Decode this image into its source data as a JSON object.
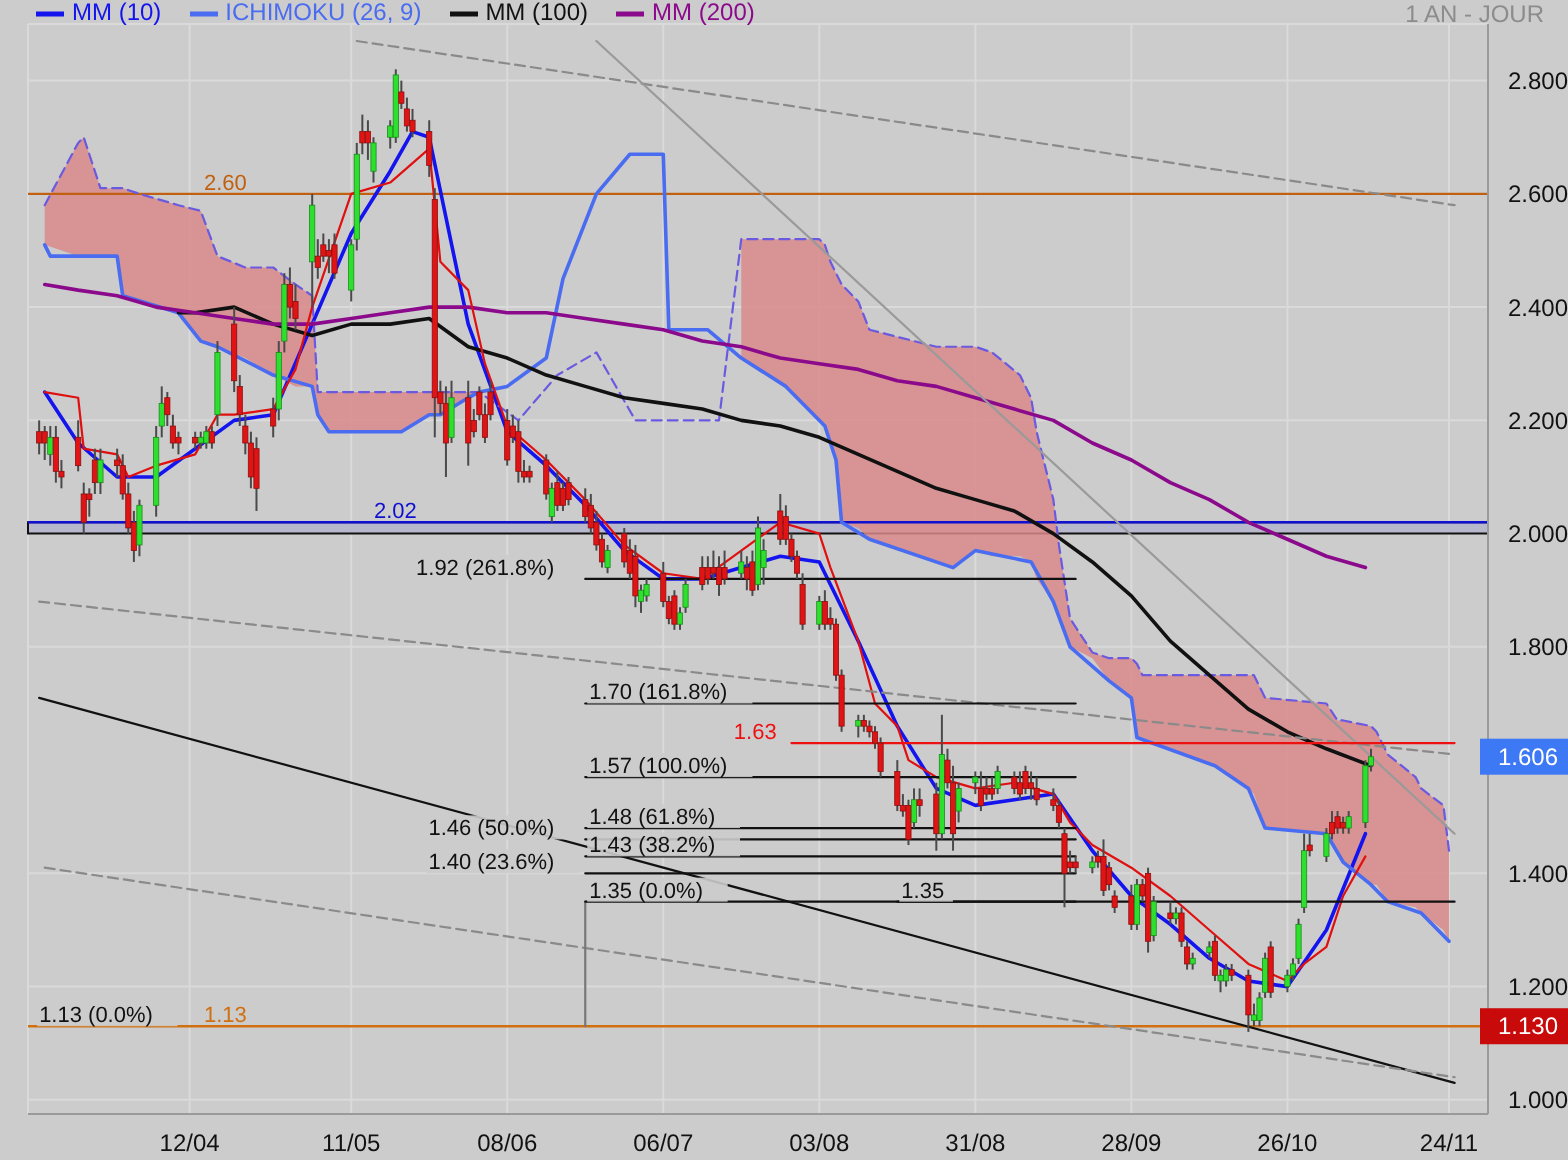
{
  "chart_data": {
    "type": "candlestick",
    "subtitle": "1 AN - JOUR",
    "legend": "top left",
    "grid": true,
    "xlim": [
      "--03-14",
      "--12-01"
    ],
    "xticks": [
      {
        "value": "--04-12",
        "label": "12/04"
      },
      {
        "value": "--05-11",
        "label": "11/05"
      },
      {
        "value": "--06-08",
        "label": "08/06"
      },
      {
        "value": "--07-06",
        "label": "06/07"
      },
      {
        "value": "--08-03",
        "label": "03/08"
      },
      {
        "value": "--08-31",
        "label": "31/08"
      },
      {
        "value": "--09-28",
        "label": "28/09"
      },
      {
        "value": "--10-26",
        "label": "26/10"
      },
      {
        "value": "--11-24",
        "label": "24/11"
      }
    ],
    "ylim": [
      0.975,
      2.9
    ],
    "yticks": [
      {
        "value": 1,
        "label": "1.000"
      },
      {
        "value": 1.2,
        "label": "1.200"
      },
      {
        "value": 1.4,
        "label": "1.400"
      },
      {
        "value": 1.8,
        "label": "1.800"
      },
      {
        "value": 2,
        "label": "2.000"
      },
      {
        "value": 2.2,
        "label": "2.200"
      },
      {
        "value": 2.4,
        "label": "2.400"
      },
      {
        "value": 2.6,
        "label": "2.600"
      },
      {
        "value": 2.8,
        "label": "2.800"
      }
    ],
    "x": [
      "--03-16",
      "--03-17",
      "--03-18",
      "--03-19",
      "--03-20",
      "--03-23",
      "--03-24",
      "--03-25",
      "--03-26",
      "--03-27",
      "--03-30",
      "--03-31",
      "--04-01",
      "--04-02",
      "--04-03",
      "--04-06",
      "--04-07",
      "--04-08",
      "--04-09",
      "--04-10",
      "--04-13",
      "--04-14",
      "--04-15",
      "--04-16",
      "--04-17",
      "--04-20",
      "--04-21",
      "--04-22",
      "--04-23",
      "--04-24",
      "--04-27",
      "--04-28",
      "--04-29",
      "--04-30",
      "--05-01",
      "--05-04",
      "--05-05",
      "--05-06",
      "--05-07",
      "--05-08",
      "--05-11",
      "--05-12",
      "--05-13",
      "--05-14",
      "--05-15",
      "--05-18",
      "--05-19",
      "--05-20",
      "--05-21",
      "--05-22",
      "--05-25",
      "--05-26",
      "--05-27",
      "--05-28",
      "--05-29",
      "--06-01",
      "--06-02",
      "--06-03",
      "--06-04",
      "--06-05",
      "--06-08",
      "--06-09",
      "--06-10",
      "--06-11",
      "--06-12",
      "--06-15",
      "--06-16",
      "--06-17",
      "--06-18",
      "--06-19",
      "--06-22",
      "--06-23",
      "--06-24",
      "--06-25",
      "--06-26",
      "--06-29",
      "--06-30",
      "--07-01",
      "--07-02",
      "--07-03",
      "--07-06",
      "--07-07",
      "--07-08",
      "--07-09",
      "--07-10",
      "--07-13",
      "--07-14",
      "--07-15",
      "--07-16",
      "--07-17",
      "--07-20",
      "--07-21",
      "--07-22",
      "--07-23",
      "--07-24",
      "--07-27",
      "--07-28",
      "--07-29",
      "--07-30",
      "--07-31",
      "--08-03",
      "--08-04",
      "--08-05",
      "--08-06",
      "--08-07",
      "--08-10",
      "--08-11",
      "--08-12",
      "--08-13",
      "--08-14",
      "--08-17",
      "--08-18",
      "--08-19",
      "--08-20",
      "--08-21",
      "--08-24",
      "--08-25",
      "--08-26",
      "--08-27",
      "--08-28",
      "--08-31",
      "--09-01",
      "--09-02",
      "--09-03",
      "--09-04",
      "--09-07",
      "--09-08",
      "--09-09",
      "--09-10",
      "--09-11",
      "--09-14",
      "--09-15",
      "--09-16",
      "--09-17",
      "--09-18",
      "--09-21",
      "--09-22",
      "--09-23",
      "--09-24",
      "--09-25",
      "--09-28",
      "--09-29",
      "--09-30",
      "--10-01",
      "--10-02",
      "--10-05",
      "--10-06",
      "--10-07",
      "--10-08",
      "--10-09",
      "--10-12",
      "--10-13",
      "--10-14",
      "--10-15",
      "--10-16",
      "--10-19",
      "--10-20",
      "--10-21",
      "--10-22",
      "--10-23",
      "--10-26",
      "--10-27",
      "--10-28",
      "--10-29",
      "--10-30",
      "--11-02",
      "--11-03",
      "--11-04",
      "--11-05",
      "--11-06",
      "--11-09",
      "--11-10"
    ],
    "ohlc": [
      [
        2.18,
        2.2,
        2.14,
        2.16
      ],
      [
        2.18,
        2.19,
        2.13,
        2.16
      ],
      [
        2.14,
        2.19,
        2.12,
        2.17
      ],
      [
        2.17,
        2.19,
        2.09,
        2.11
      ],
      [
        2.11,
        2.13,
        2.08,
        2.1
      ],
      [
        2.17,
        2.2,
        2.11,
        2.12
      ],
      [
        2.07,
        2.09,
        2.0,
        2.02
      ],
      [
        2.07,
        2.08,
        2.03,
        2.06
      ],
      [
        2.13,
        2.15,
        2.07,
        2.09
      ],
      [
        2.09,
        2.15,
        2.07,
        2.13
      ],
      [
        2.13,
        2.15,
        2.1,
        2.12
      ],
      [
        2.12,
        2.14,
        2.06,
        2.07
      ],
      [
        2.07,
        2.09,
        2.0,
        2.01
      ],
      [
        2.02,
        2.04,
        1.95,
        1.97
      ],
      [
        1.98,
        2.06,
        1.96,
        2.05
      ],
      [
        2.05,
        2.19,
        2.03,
        2.17
      ],
      [
        2.19,
        2.26,
        2.17,
        2.23
      ],
      [
        2.24,
        2.25,
        2.19,
        2.21
      ],
      [
        2.19,
        2.21,
        2.15,
        2.16
      ],
      [
        2.17,
        2.18,
        2.14,
        2.16
      ],
      [
        2.17,
        2.18,
        2.15,
        2.16
      ],
      [
        2.16,
        2.18,
        2.15,
        2.17
      ],
      [
        2.16,
        2.19,
        2.15,
        2.18
      ],
      [
        2.18,
        2.19,
        2.15,
        2.16
      ],
      [
        2.21,
        2.34,
        2.19,
        2.32
      ],
      [
        2.37,
        2.4,
        2.25,
        2.27
      ],
      [
        2.26,
        2.28,
        2.19,
        2.21
      ],
      [
        2.19,
        2.21,
        2.14,
        2.16
      ],
      [
        2.16,
        2.18,
        2.08,
        2.1
      ],
      [
        2.15,
        2.17,
        2.04,
        2.08
      ],
      [
        2.22,
        2.24,
        2.17,
        2.19
      ],
      [
        2.22,
        2.34,
        2.2,
        2.32
      ],
      [
        2.34,
        2.46,
        2.32,
        2.44
      ],
      [
        2.44,
        2.47,
        2.38,
        2.4
      ],
      [
        2.41,
        2.44,
        2.36,
        2.38
      ],
      [
        2.48,
        2.6,
        2.4,
        2.58
      ],
      [
        2.49,
        2.52,
        2.45,
        2.47
      ],
      [
        2.51,
        2.53,
        2.48,
        2.49
      ],
      [
        2.5,
        2.52,
        2.46,
        2.49
      ],
      [
        2.51,
        2.53,
        2.45,
        2.46
      ],
      [
        2.43,
        2.52,
        2.41,
        2.51
      ],
      [
        2.52,
        2.69,
        2.5,
        2.67
      ],
      [
        2.71,
        2.74,
        2.67,
        2.69
      ],
      [
        2.71,
        2.73,
        2.66,
        2.69
      ],
      [
        2.64,
        2.7,
        2.62,
        2.69
      ],
      [
        2.7,
        2.73,
        2.68,
        2.72
      ],
      [
        2.7,
        2.82,
        2.69,
        2.81
      ],
      [
        2.78,
        2.8,
        2.75,
        2.76
      ],
      [
        2.75,
        2.77,
        2.71,
        2.72
      ],
      [
        2.73,
        2.75,
        2.7,
        2.71
      ],
      [
        2.71,
        2.73,
        2.63,
        2.65
      ],
      [
        2.59,
        2.61,
        2.17,
        2.24
      ],
      [
        2.25,
        2.27,
        2.21,
        2.23
      ],
      [
        2.23,
        2.26,
        2.1,
        2.16
      ],
      [
        2.17,
        2.27,
        2.16,
        2.24
      ],
      [
        2.24,
        2.27,
        2.12,
        2.16
      ],
      [
        2.2,
        2.22,
        2.17,
        2.18
      ],
      [
        2.25,
        2.26,
        2.2,
        2.21
      ],
      [
        2.21,
        2.23,
        2.16,
        2.17
      ],
      [
        2.25,
        2.27,
        2.2,
        2.21
      ],
      [
        2.2,
        2.22,
        2.12,
        2.13
      ],
      [
        2.19,
        2.21,
        2.16,
        2.17
      ],
      [
        2.18,
        2.2,
        2.09,
        2.11
      ],
      [
        2.11,
        2.13,
        2.09,
        2.1
      ],
      [
        2.11,
        2.12,
        2.09,
        2.1
      ],
      [
        2.13,
        2.14,
        2.06,
        2.07
      ],
      [
        2.03,
        2.09,
        2.02,
        2.08
      ],
      [
        2.09,
        2.11,
        2.04,
        2.05
      ],
      [
        2.08,
        2.09,
        2.04,
        2.05
      ],
      [
        2.09,
        2.1,
        2.05,
        2.06
      ],
      [
        2.06,
        2.08,
        2.02,
        2.03
      ],
      [
        2.05,
        2.07,
        2.0,
        2.01
      ],
      [
        2.02,
        2.04,
        1.97,
        1.98
      ],
      [
        1.99,
        2.0,
        1.94,
        1.95
      ],
      [
        1.94,
        1.98,
        1.93,
        1.97
      ],
      [
        2.0,
        2.01,
        1.94,
        1.95
      ],
      [
        1.97,
        1.99,
        1.92,
        1.93
      ],
      [
        1.96,
        1.98,
        1.87,
        1.89
      ],
      [
        1.88,
        1.91,
        1.86,
        1.9
      ],
      [
        1.89,
        1.92,
        1.88,
        1.91
      ],
      [
        1.93,
        1.95,
        1.87,
        1.88
      ],
      [
        1.88,
        1.89,
        1.84,
        1.85
      ],
      [
        1.89,
        1.9,
        1.83,
        1.84
      ],
      [
        1.84,
        1.87,
        1.83,
        1.86
      ],
      [
        1.87,
        1.92,
        1.86,
        1.91
      ],
      [
        1.94,
        1.96,
        1.9,
        1.91
      ],
      [
        1.94,
        1.96,
        1.91,
        1.92
      ],
      [
        1.94,
        1.97,
        1.92,
        1.93
      ],
      [
        1.94,
        1.96,
        1.89,
        1.91
      ],
      [
        1.94,
        1.97,
        1.91,
        1.92
      ],
      [
        1.93,
        1.97,
        1.92,
        1.95
      ],
      [
        1.94,
        1.96,
        1.9,
        1.92
      ],
      [
        1.95,
        1.97,
        1.89,
        1.9
      ],
      [
        1.91,
        2.03,
        1.9,
        2.01
      ],
      [
        1.94,
        1.99,
        1.91,
        1.97
      ],
      [
        2.04,
        2.07,
        1.98,
        1.99
      ],
      [
        2.03,
        2.05,
        1.98,
        1.99
      ],
      [
        1.99,
        2.0,
        1.95,
        1.96
      ],
      [
        1.96,
        1.97,
        1.92,
        1.93
      ],
      [
        1.91,
        1.93,
        1.83,
        1.84
      ],
      [
        1.84,
        1.89,
        1.83,
        1.88
      ],
      [
        1.88,
        1.9,
        1.83,
        1.84
      ],
      [
        1.85,
        1.87,
        1.83,
        1.84
      ],
      [
        1.84,
        1.85,
        1.74,
        1.75
      ],
      [
        1.75,
        1.76,
        1.65,
        1.66
      ],
      [
        1.66,
        1.68,
        1.64,
        1.67
      ],
      [
        1.67,
        1.68,
        1.65,
        1.66
      ],
      [
        1.66,
        1.67,
        1.64,
        1.65
      ],
      [
        1.65,
        1.66,
        1.62,
        1.63
      ],
      [
        1.63,
        1.64,
        1.57,
        1.58
      ],
      [
        1.58,
        1.6,
        1.51,
        1.52
      ],
      [
        1.52,
        1.54,
        1.5,
        1.51
      ],
      [
        1.52,
        1.53,
        1.45,
        1.46
      ],
      [
        1.49,
        1.55,
        1.48,
        1.53
      ],
      [
        1.53,
        1.55,
        1.5,
        1.52
      ],
      [
        1.54,
        1.56,
        1.44,
        1.47
      ],
      [
        1.47,
        1.68,
        1.46,
        1.61
      ],
      [
        1.6,
        1.62,
        1.55,
        1.56
      ],
      [
        1.56,
        1.59,
        1.44,
        1.47
      ],
      [
        1.51,
        1.56,
        1.49,
        1.55
      ],
      [
        1.56,
        1.58,
        1.54,
        1.57
      ],
      [
        1.55,
        1.58,
        1.51,
        1.52
      ],
      [
        1.55,
        1.57,
        1.53,
        1.54
      ],
      [
        1.55,
        1.57,
        1.53,
        1.54
      ],
      [
        1.55,
        1.59,
        1.54,
        1.58
      ],
      [
        1.57,
        1.58,
        1.54,
        1.55
      ],
      [
        1.56,
        1.58,
        1.53,
        1.54
      ],
      [
        1.58,
        1.59,
        1.54,
        1.55
      ],
      [
        1.56,
        1.58,
        1.53,
        1.55
      ],
      [
        1.55,
        1.57,
        1.52,
        1.53
      ],
      [
        1.53,
        1.55,
        1.51,
        1.52
      ],
      [
        1.52,
        1.53,
        1.48,
        1.49
      ],
      [
        1.47,
        1.48,
        1.34,
        1.4
      ],
      [
        1.42,
        1.44,
        1.4,
        1.41
      ],
      [
        1.42,
        1.43,
        1.4,
        1.41
      ],
      [
        1.41,
        1.43,
        1.4,
        1.42
      ],
      [
        1.43,
        1.44,
        1.41,
        1.42
      ],
      [
        1.43,
        1.46,
        1.36,
        1.37
      ],
      [
        1.41,
        1.42,
        1.37,
        1.38
      ],
      [
        1.36,
        1.37,
        1.33,
        1.34
      ],
      [
        1.36,
        1.38,
        1.3,
        1.31
      ],
      [
        1.31,
        1.39,
        1.3,
        1.38
      ],
      [
        1.38,
        1.39,
        1.35,
        1.36
      ],
      [
        1.4,
        1.41,
        1.26,
        1.28
      ],
      [
        1.29,
        1.36,
        1.28,
        1.35
      ],
      [
        1.33,
        1.35,
        1.31,
        1.32
      ],
      [
        1.32,
        1.34,
        1.31,
        1.33
      ],
      [
        1.33,
        1.34,
        1.27,
        1.28
      ],
      [
        1.27,
        1.28,
        1.23,
        1.24
      ],
      [
        1.24,
        1.26,
        1.23,
        1.25
      ],
      [
        1.26,
        1.28,
        1.25,
        1.27
      ],
      [
        1.28,
        1.29,
        1.21,
        1.22
      ],
      [
        1.21,
        1.23,
        1.19,
        1.22
      ],
      [
        1.21,
        1.24,
        1.2,
        1.23
      ],
      [
        1.23,
        1.24,
        1.21,
        1.22
      ],
      [
        1.22,
        1.23,
        1.12,
        1.15
      ],
      [
        1.14,
        1.17,
        1.13,
        1.15
      ],
      [
        1.14,
        1.19,
        1.13,
        1.18
      ],
      [
        1.19,
        1.26,
        1.18,
        1.25
      ],
      [
        1.27,
        1.28,
        1.18,
        1.19
      ],
      [
        1.2,
        1.23,
        1.19,
        1.22
      ],
      [
        1.22,
        1.25,
        1.21,
        1.24
      ],
      [
        1.25,
        1.32,
        1.24,
        1.31
      ],
      [
        1.34,
        1.47,
        1.33,
        1.44
      ],
      [
        1.45,
        1.47,
        1.43,
        1.44
      ],
      [
        1.43,
        1.48,
        1.42,
        1.47
      ],
      [
        1.49,
        1.51,
        1.46,
        1.47
      ],
      [
        1.5,
        1.51,
        1.47,
        1.48
      ],
      [
        1.49,
        1.5,
        1.47,
        1.48
      ],
      [
        1.48,
        1.51,
        1.47,
        1.5
      ],
      [
        1.49,
        1.6,
        1.48,
        1.59
      ],
      [
        1.59,
        1.62,
        1.58,
        1.606
      ]
    ],
    "series": [
      {
        "type": "line",
        "name": "MM (10)",
        "color": "#1414ee",
        "x": [
          "--03-17",
          "--03-23",
          "--03-30",
          "--04-06",
          "--04-13",
          "--04-20",
          "--04-27",
          "--05-04",
          "--05-11",
          "--05-18",
          "--05-22",
          "--05-25",
          "--06-01",
          "--06-08",
          "--06-15",
          "--06-22",
          "--06-29",
          "--07-06",
          "--07-13",
          "--07-20",
          "--07-27",
          "--08-03",
          "--08-10",
          "--08-17",
          "--08-24",
          "--08-31",
          "--09-07",
          "--09-14",
          "--09-21",
          "--09-28",
          "--10-05",
          "--10-12",
          "--10-19",
          "--10-26",
          "--11-02",
          "--11-09"
        ],
        "values": [
          2.25,
          2.16,
          2.1,
          2.1,
          2.15,
          2.2,
          2.21,
          2.37,
          2.53,
          2.64,
          2.71,
          2.7,
          2.37,
          2.18,
          2.12,
          2.05,
          1.97,
          1.92,
          1.92,
          1.94,
          1.96,
          1.95,
          1.81,
          1.66,
          1.55,
          1.52,
          1.53,
          1.54,
          1.44,
          1.36,
          1.31,
          1.25,
          1.21,
          1.2,
          1.3,
          1.47
        ]
      },
      {
        "type": "line",
        "name": "ICHIMOKU (26, 9)",
        "color": "#4a6cf0",
        "x": [
          "--03-17",
          "--03-18",
          "--03-30",
          "--03-31",
          "--04-10",
          "--04-14",
          "--04-17",
          "--04-27",
          "--05-04",
          "--05-05",
          "--05-07",
          "--05-20",
          "--05-25",
          "--05-27",
          "--06-01",
          "--06-03",
          "--06-08",
          "--06-15",
          "--06-18",
          "--06-24",
          "--06-30",
          "--07-06",
          "--07-07",
          "--07-14",
          "--07-20",
          "--07-28",
          "--08-04",
          "--08-06",
          "--08-07",
          "--08-12",
          "--08-27",
          "--08-31",
          "--09-10",
          "--09-14",
          "--09-17",
          "--09-24",
          "--09-28",
          "--09-29",
          "--10-13",
          "--10-19",
          "--10-22",
          "--11-02",
          "--11-05",
          "--11-10",
          "--11-13",
          "--11-19",
          "--11-24"
        ],
        "values": [
          2.51,
          2.49,
          2.49,
          2.42,
          2.39,
          2.34,
          2.33,
          2.28,
          2.26,
          2.21,
          2.18,
          2.18,
          2.21,
          2.21,
          2.24,
          2.25,
          2.26,
          2.31,
          2.45,
          2.6,
          2.67,
          2.67,
          2.36,
          2.36,
          2.31,
          2.26,
          2.19,
          2.13,
          2.02,
          1.99,
          1.94,
          1.97,
          1.95,
          1.88,
          1.8,
          1.74,
          1.71,
          1.64,
          1.59,
          1.55,
          1.48,
          1.47,
          1.42,
          1.38,
          1.35,
          1.33,
          1.28
        ]
      },
      {
        "type": "line",
        "color": "#6a5ae0",
        "line_style": "dashed",
        "x": [
          "--03-17",
          "--03-23",
          "--03-24",
          "--03-27",
          "--03-30",
          "--03-31",
          "--04-03",
          "--04-10",
          "--04-14",
          "--04-17",
          "--04-22",
          "--04-27",
          "--05-01",
          "--05-04",
          "--05-05",
          "--05-07",
          "--05-20",
          "--05-25",
          "--05-27",
          "--06-01",
          "--06-03",
          "--06-10",
          "--06-17",
          "--06-24",
          "--07-01",
          "--07-16",
          "--07-20",
          "--07-28",
          "--08-03",
          "--08-04",
          "--08-05",
          "--08-06",
          "--08-07",
          "--08-10",
          "--08-12",
          "--08-24",
          "--08-27",
          "--08-31",
          "--09-03",
          "--09-08",
          "--09-10",
          "--09-11",
          "--09-14",
          "--09-15",
          "--09-17",
          "--09-21",
          "--09-24",
          "--09-28",
          "--09-29",
          "--09-30",
          "--10-13",
          "--10-19",
          "--10-20",
          "--10-22",
          "--11-02",
          "--11-04",
          "--11-05",
          "--11-10",
          "--11-11",
          "--11-13",
          "--11-18",
          "--11-19",
          "--11-23",
          "--11-24"
        ],
        "values": [
          2.58,
          2.69,
          2.7,
          2.61,
          2.61,
          2.61,
          2.6,
          2.58,
          2.57,
          2.49,
          2.47,
          2.47,
          2.44,
          2.42,
          2.25,
          2.25,
          2.25,
          2.25,
          2.25,
          2.25,
          2.25,
          2.2,
          2.28,
          2.32,
          2.2,
          2.2,
          2.52,
          2.52,
          2.52,
          2.51,
          2.48,
          2.46,
          2.44,
          2.41,
          2.36,
          2.33,
          2.33,
          2.33,
          2.32,
          2.28,
          2.24,
          2.18,
          2.06,
          1.98,
          1.85,
          1.79,
          1.78,
          1.78,
          1.77,
          1.75,
          1.75,
          1.75,
          1.75,
          1.71,
          1.7,
          1.67,
          1.67,
          1.66,
          1.65,
          1.61,
          1.57,
          1.55,
          1.52,
          1.44
        ],
        "lower": [
          2.51,
          2.49,
          2.49,
          2.49,
          2.49,
          2.42,
          2.41,
          2.39,
          2.34,
          2.33,
          2.31,
          2.28,
          2.26,
          2.26,
          2.21,
          2.18,
          2.18,
          2.21,
          2.21,
          2.24,
          2.25,
          null,
          null,
          null,
          null,
          null,
          2.31,
          2.26,
          2.2,
          2.19,
          2.16,
          2.13,
          2.02,
          2.01,
          1.99,
          1.95,
          1.94,
          1.97,
          1.96,
          1.96,
          1.95,
          1.92,
          1.88,
          1.86,
          1.8,
          1.78,
          1.74,
          1.71,
          1.64,
          1.64,
          1.59,
          1.55,
          1.54,
          1.48,
          1.47,
          1.44,
          1.42,
          1.38,
          1.38,
          1.35,
          1.34,
          1.33,
          1.3,
          1.28
        ],
        "upper": [
          2.58,
          2.69,
          2.7,
          2.61,
          2.61,
          2.61,
          2.6,
          2.58,
          2.57,
          2.49,
          2.47,
          2.47,
          2.44,
          2.42,
          2.25,
          2.25,
          2.25,
          2.25,
          2.25,
          2.25,
          2.25,
          null,
          null,
          null,
          null,
          null,
          2.52,
          2.52,
          2.52,
          2.51,
          2.48,
          2.46,
          2.44,
          2.41,
          2.36,
          2.33,
          2.33,
          2.33,
          2.32,
          2.28,
          2.24,
          2.18,
          2.06,
          1.98,
          1.85,
          1.79,
          1.78,
          1.78,
          1.77,
          1.75,
          1.75,
          1.75,
          1.75,
          1.71,
          1.7,
          1.67,
          1.67,
          1.66,
          1.65,
          1.61,
          1.57,
          1.55,
          1.52,
          1.44
        ]
      },
      {
        "type": "line",
        "name": "MM (100)",
        "color": "#111111",
        "x": [
          "--04-10",
          "--04-13",
          "--04-20",
          "--04-27",
          "--05-04",
          "--05-11",
          "--05-18",
          "--05-25",
          "--06-01",
          "--06-08",
          "--06-15",
          "--06-22",
          "--06-29",
          "--07-06",
          "--07-13",
          "--07-20",
          "--07-27",
          "--08-03",
          "--08-10",
          "--08-17",
          "--08-24",
          "--08-31",
          "--09-07",
          "--09-14",
          "--09-21",
          "--09-28",
          "--10-05",
          "--10-12",
          "--10-19",
          "--10-26",
          "--11-02",
          "--11-10"
        ],
        "values": [
          2.39,
          2.39,
          2.4,
          2.37,
          2.35,
          2.37,
          2.37,
          2.38,
          2.33,
          2.31,
          2.28,
          2.26,
          2.24,
          2.23,
          2.22,
          2.2,
          2.19,
          2.17,
          2.14,
          2.11,
          2.08,
          2.06,
          2.04,
          2.0,
          1.95,
          1.89,
          1.81,
          1.75,
          1.69,
          1.65,
          1.62,
          1.59
        ]
      },
      {
        "type": "line",
        "name": "MM (200)",
        "color": "#8b0a8b",
        "x": [
          "--03-17",
          "--03-23",
          "--03-30",
          "--04-06",
          "--04-13",
          "--04-20",
          "--04-27",
          "--05-04",
          "--05-11",
          "--05-18",
          "--05-25",
          "--06-01",
          "--06-08",
          "--06-15",
          "--06-22",
          "--06-29",
          "--07-06",
          "--07-13",
          "--07-20",
          "--07-27",
          "--08-03",
          "--08-10",
          "--08-17",
          "--08-24",
          "--08-31",
          "--09-07",
          "--09-14",
          "--09-21",
          "--09-28",
          "--10-05",
          "--10-12",
          "--10-19",
          "--10-26",
          "--11-02",
          "--11-09"
        ],
        "values": [
          2.44,
          2.43,
          2.42,
          2.4,
          2.39,
          2.38,
          2.37,
          2.37,
          2.38,
          2.39,
          2.4,
          2.4,
          2.39,
          2.39,
          2.38,
          2.37,
          2.36,
          2.34,
          2.33,
          2.31,
          2.3,
          2.29,
          2.27,
          2.26,
          2.24,
          2.22,
          2.2,
          2.16,
          2.13,
          2.09,
          2.06,
          2.02,
          1.99,
          1.96,
          1.94
        ]
      },
      {
        "type": "line",
        "color": "#e01010",
        "x": [
          "--03-17",
          "--03-23",
          "--03-24",
          "--03-30",
          "--04-01",
          "--04-06",
          "--04-13",
          "--04-17",
          "--04-20",
          "--04-27",
          "--05-01",
          "--05-04",
          "--05-11",
          "--05-18",
          "--05-25",
          "--05-27",
          "--06-01",
          "--06-04",
          "--06-08",
          "--06-15",
          "--06-22",
          "--06-29",
          "--07-06",
          "--07-13",
          "--07-20",
          "--07-27",
          "--08-03",
          "--08-05",
          "--08-10",
          "--08-13",
          "--08-17",
          "--08-19",
          "--08-24",
          "--08-31",
          "--09-07",
          "--09-14",
          "--09-17",
          "--09-21",
          "--09-28",
          "--10-05",
          "--10-12",
          "--10-19",
          "--10-26",
          "--10-29",
          "--11-02",
          "--11-05",
          "--11-09"
        ],
        "values": [
          2.25,
          2.24,
          2.15,
          2.14,
          2.1,
          2.12,
          2.14,
          2.21,
          2.21,
          2.22,
          2.29,
          2.4,
          2.6,
          2.62,
          2.68,
          2.48,
          2.43,
          2.3,
          2.19,
          2.13,
          2.06,
          1.98,
          1.93,
          1.92,
          1.97,
          2.02,
          2.0,
          1.94,
          1.81,
          1.7,
          1.66,
          1.6,
          1.57,
          1.55,
          1.56,
          1.54,
          1.49,
          1.45,
          1.41,
          1.36,
          1.3,
          1.24,
          1.21,
          1.24,
          1.27,
          1.36,
          1.43
        ]
      },
      {
        "type": "line",
        "color": "#111111",
        "x": [
          "--03-16",
          "--11-25"
        ],
        "values": [
          1.71,
          1.03
        ]
      },
      {
        "type": "line",
        "color": "#8a8a8a",
        "line_style": "dashed",
        "x": [
          "--03-17",
          "--11-25"
        ],
        "values": [
          1.41,
          1.04
        ]
      },
      {
        "type": "line",
        "color": "#8a8a8a",
        "line_style": "dashed",
        "x": [
          "--03-16",
          "--11-25"
        ],
        "values": [
          1.88,
          1.61
        ]
      },
      {
        "type": "line",
        "color": "#8a8a8a",
        "line_style": "dashed",
        "x": [
          "--05-12",
          "--11-25"
        ],
        "values": [
          2.87,
          2.58
        ]
      },
      {
        "type": "line",
        "color": "#9a9a9a",
        "x": [
          "--06-24",
          "--11-25"
        ],
        "values": [
          2.87,
          1.47
        ]
      },
      {
        "type": "line",
        "color": "#777777",
        "x": [
          "--06-22",
          "--06-22"
        ],
        "values": [
          1.35,
          1.13
        ]
      },
      {
        "type": "line",
        "name": "1.92 (261.8%)",
        "color": "#111111",
        "x": [
          "--06-22",
          "--09-18"
        ],
        "values": [
          1.92,
          1.92
        ]
      },
      {
        "type": "line",
        "name": "1.70 (161.8%)",
        "color": "#111111",
        "x": [
          "--06-22",
          "--09-18"
        ],
        "values": [
          1.7,
          1.7
        ]
      },
      {
        "type": "line",
        "name": "1.63",
        "color": "#ee1111",
        "x": [
          "--07-29",
          "--11-25"
        ],
        "values": [
          1.63,
          1.63
        ]
      },
      {
        "type": "line",
        "name": "1.57 (100.0%)",
        "color": "#111111",
        "x": [
          "--06-22",
          "--09-18"
        ],
        "values": [
          1.57,
          1.57
        ]
      },
      {
        "type": "line",
        "name": "1.48 (61.8%)",
        "color": "#111111",
        "x": [
          "--06-22",
          "--09-18"
        ],
        "values": [
          1.48,
          1.48
        ]
      },
      {
        "type": "line",
        "name": "1.46 (50.0%)",
        "color": "#111111",
        "x": [
          "--06-22",
          "--09-18"
        ],
        "values": [
          1.46,
          1.46
        ]
      },
      {
        "type": "line",
        "name": "1.43 (38.2%)",
        "color": "#111111",
        "x": [
          "--06-22",
          "--09-18"
        ],
        "values": [
          1.43,
          1.43
        ]
      },
      {
        "type": "line",
        "name": "1.40 (23.6%)",
        "color": "#111111",
        "x": [
          "--06-22",
          "--09-18"
        ],
        "values": [
          1.4,
          1.4
        ]
      },
      {
        "type": "line",
        "name": "1.35 (0.0%)",
        "color": "#111111",
        "x": [
          "--06-22",
          "--09-18"
        ],
        "values": [
          1.35,
          1.35
        ]
      },
      {
        "type": "line",
        "name": "1.35",
        "color": "#111111",
        "x": [
          "--08-17",
          "--11-25"
        ],
        "values": [
          1.35,
          1.35
        ]
      }
    ],
    "ref_lines": [
      {
        "axis": "y",
        "value": 2.6,
        "label": "2.60",
        "color": "#c06010"
      },
      {
        "axis": "y",
        "value": 2.02,
        "label": "2.02",
        "color": "#1010d0"
      },
      {
        "axis": "y",
        "value": 1.13,
        "label": "1.13",
        "color": "#d07010"
      }
    ],
    "bands": [
      {
        "axis": "y",
        "from": 2.0,
        "to": 2.02,
        "color": "#b8b8cc"
      }
    ],
    "annotations": [
      {
        "text": "1.13 (0.0%)",
        "x": "--03-16",
        "y": 1.13
      },
      {
        "text": "1.606",
        "y": 1.606
      },
      {
        "text": "1.130",
        "y": 1.13
      }
    ]
  }
}
